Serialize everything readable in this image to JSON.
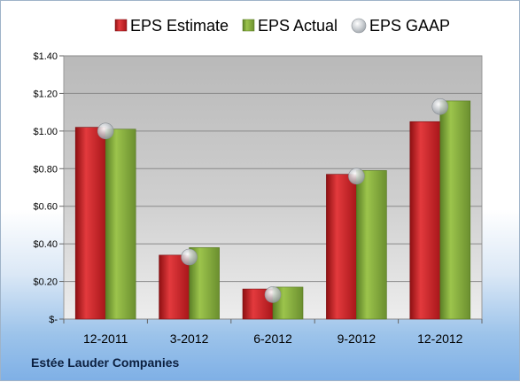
{
  "company": "Estée Lauder Companies",
  "colors": {
    "estimate": "#d42a2f",
    "actual": "#8db53f",
    "gaap": "#b8bec4"
  },
  "chart_data": {
    "type": "bar",
    "categories": [
      "12-2011",
      "3-2012",
      "6-2012",
      "9-2012",
      "12-2012"
    ],
    "series": [
      {
        "name": "EPS Estimate",
        "values": [
          1.02,
          0.34,
          0.16,
          0.77,
          1.05
        ]
      },
      {
        "name": "EPS Actual",
        "values": [
          1.01,
          0.38,
          0.17,
          0.79,
          1.16
        ]
      },
      {
        "name": "EPS GAAP",
        "marker": "circle",
        "values": [
          1.0,
          0.33,
          0.13,
          0.76,
          1.13
        ]
      }
    ],
    "yticks": [
      "$-",
      "$0.20",
      "$0.40",
      "$0.60",
      "$0.80",
      "$1.00",
      "$1.20",
      "$1.40"
    ],
    "ylim": [
      0,
      1.4
    ],
    "grid": true,
    "legend": "top-center"
  }
}
